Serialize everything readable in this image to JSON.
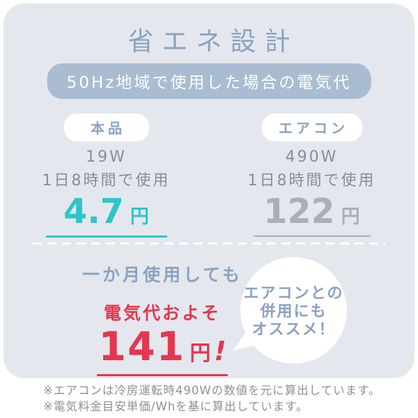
{
  "card": {
    "title": "省エネ設計",
    "subtitle_badge": "50Hz地域で使用した場合の電気代",
    "comparison": {
      "product": {
        "badge": "本品",
        "wattage": "19W",
        "usage": "1日8時間で使用",
        "price_value": "4.7",
        "price_unit": "円"
      },
      "aircon": {
        "badge": "エアコン",
        "wattage": "490W",
        "usage": "1日8時間で使用",
        "price_value": "122",
        "price_unit": "円"
      }
    },
    "monthly": {
      "lead": "一か月使用しても",
      "label": "電気代およそ",
      "price_value": "141",
      "price_unit": "円",
      "exclamation": "!"
    },
    "bubble": {
      "line1": "エアコンとの",
      "line2": "併用にも",
      "line3": "オススメ！"
    }
  },
  "footnotes": [
    "※エアコンは冷房運転時490Wの数値を元に算出しています。",
    "※電気料金目安単価/Whを基に算出しています。"
  ],
  "colors": {
    "card_bg": "#e4e8ee",
    "accent_blue": "#8ba2c1",
    "badge_pill_bg": "#a9bcd2",
    "teal": "#2cc6c8",
    "gray_text": "#878e98",
    "gray_price": "#a8afb8",
    "red": "#e6364f"
  }
}
